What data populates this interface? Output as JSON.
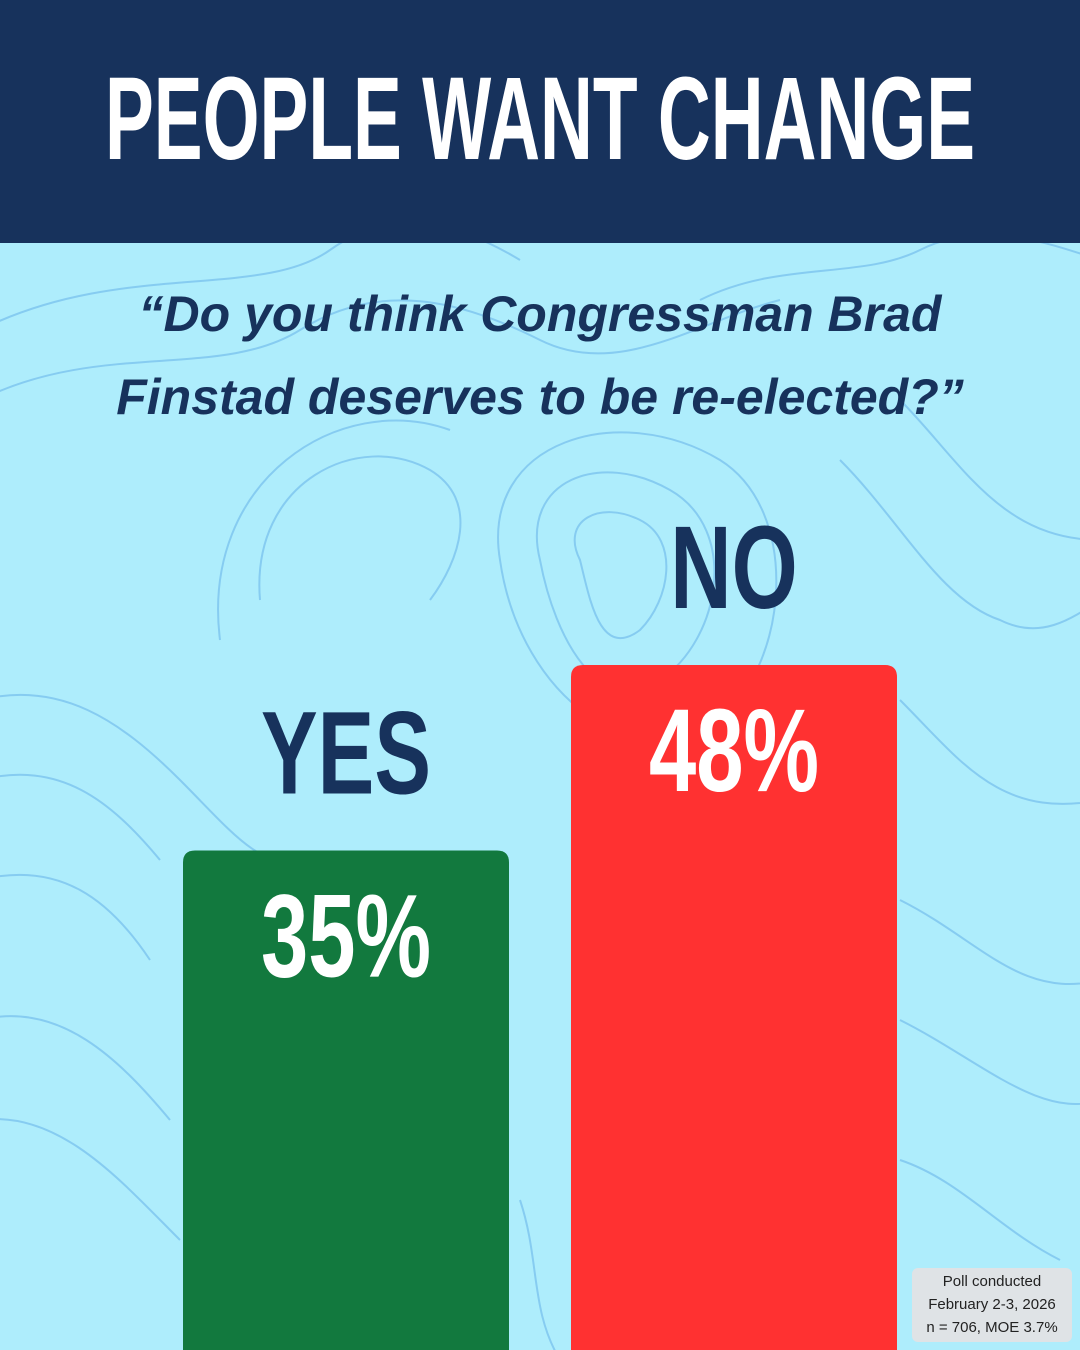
{
  "chart_data": {
    "type": "bar",
    "title": "PEOPLE WANT CHANGE",
    "subtitle": [
      "“Do you think Congressman Brad",
      "Finstad deserves to be re-elected?”"
    ],
    "categories": [
      "YES",
      "NO"
    ],
    "values": [
      35,
      48
    ],
    "value_labels": [
      "35%",
      "48%"
    ],
    "colors": [
      "#12793e",
      "#ff3131"
    ],
    "note": [
      "Poll conducted",
      "February 2-3, 2026",
      "n = 706, MOE 3.7%"
    ]
  }
}
